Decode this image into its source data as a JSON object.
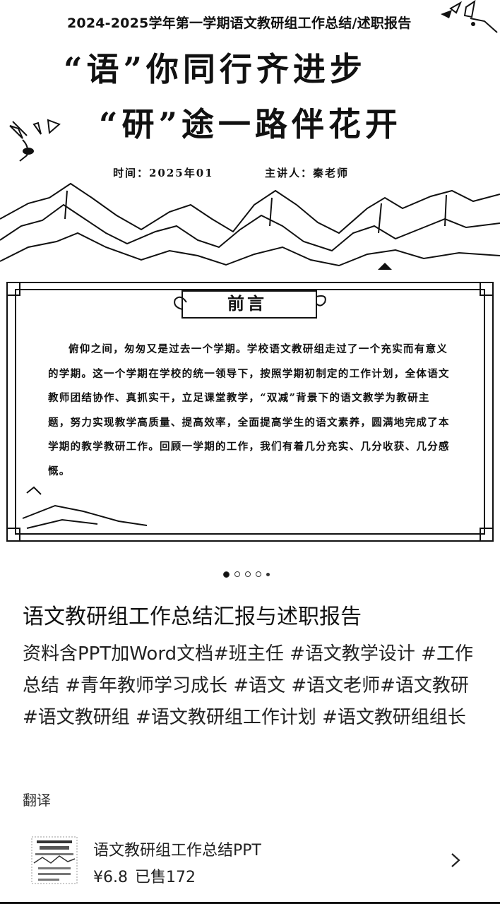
{
  "slide": {
    "title": "2024-2025学年第一学期语文教研组工作总结/述职报告",
    "headline_line1": "“语”你同行齐进步",
    "headline_line2": "“研”途一路伴花开",
    "time": "时间：2025年01",
    "speaker": "主讲人：秦老师",
    "preface_label": "前言",
    "preface_text": "俯仰之间，匆匆又是过去一个学期。学校语文教研组走过了一个充实而有意义的学期。这一个学期在学校的统一领导下，按照学期初制定的工作计划，全体语文教师团结协作、真抓实干，立足课堂教学，“双减”背景下的语文教学为教研主题，努力实现教学高质量、提高效率，全面提高学生的语文素养，圆满地完成了本学期的教学教研工作。回顾一学期的工作，我们有着几分充实、几分收获、几分感慨。"
  },
  "carousel": {
    "count": 5,
    "active": 1
  },
  "post": {
    "title": "语文教研组工作总结汇报与述职报告",
    "body": "资料含PPT加Word文档#班主任 #语文教学设计 #工作总结 #青年教师学习成长 #语文 #语文老师#语文教研#语文教研组 #语文教研组工作计划 #语文教研组组长",
    "translate_label": "翻译"
  },
  "product": {
    "name": "语文教研组工作总结PPT",
    "price": "¥6.8",
    "sold": "已售172",
    "arrow_icon": "chevron-right-icon"
  }
}
